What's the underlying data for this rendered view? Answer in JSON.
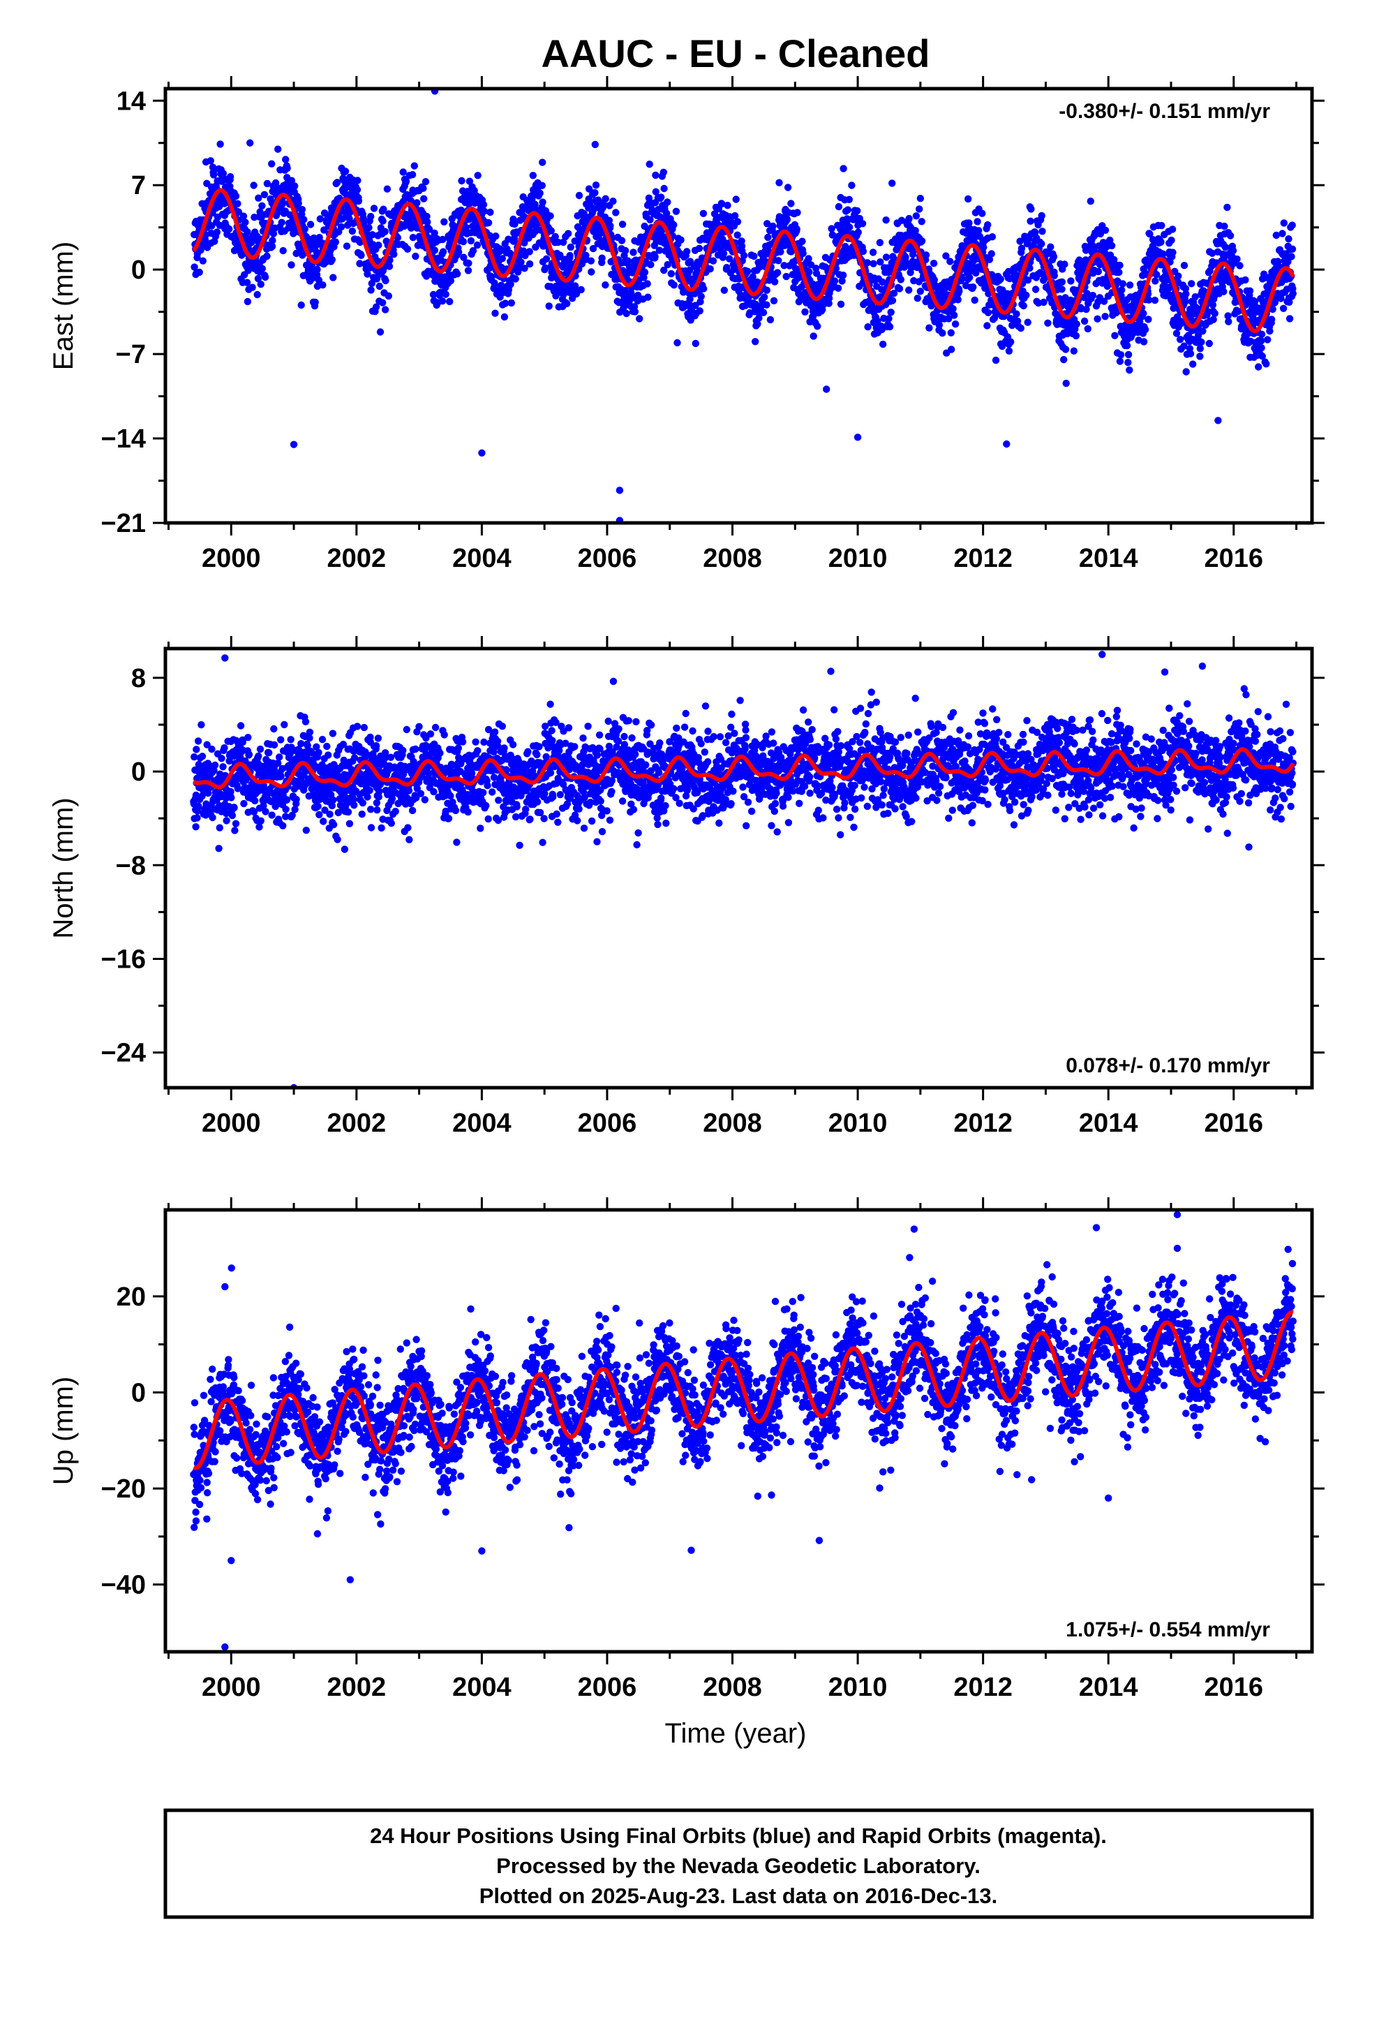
{
  "page_title": "AAUC  - EU - Cleaned",
  "xlabel": "Time (year)",
  "footer": {
    "line1": "24 Hour Positions Using Final Orbits (blue) and Rapid Orbits (magenta).",
    "line2": "Processed by the Nevada Geodetic Laboratory.",
    "line3": "Plotted on 2025-Aug-23. Last data on 2016-Dec-13."
  },
  "chart_data": [
    {
      "type": "scatter",
      "ylabel": "East (mm)",
      "rate_label": "-0.380+/- 0.151 mm/yr",
      "rate_position": "top-right",
      "xlim": [
        1998.95,
        2017.25
      ],
      "ylim": [
        -21,
        15
      ],
      "xticks": [
        2000,
        2002,
        2004,
        2006,
        2008,
        2010,
        2012,
        2014,
        2016
      ],
      "yticks": [
        14,
        7,
        0,
        -7,
        -14,
        -21
      ],
      "ytick_labels": [
        "14",
        "7",
        "0",
        "−7",
        "−14",
        "−21"
      ],
      "x_range": [
        1999.4,
        2016.95
      ],
      "fit": {
        "offset": 0.7,
        "slope": -0.38,
        "t0": 2008.2,
        "amplitude": 2.7,
        "phase": 2.6
      },
      "noise": 1.6,
      "outliers": [
        {
          "x": 2003.25,
          "y": 14.8
        },
        {
          "x": 2001.0,
          "y": -14.5
        },
        {
          "x": 2004.0,
          "y": -15.2
        },
        {
          "x": 2006.2,
          "y": -18.3
        },
        {
          "x": 2006.2,
          "y": -20.8
        },
        {
          "x": 2010.0,
          "y": -13.9
        },
        {
          "x": 2000.3,
          "y": 10.5
        },
        {
          "x": 2011.0,
          "y": 5.9
        }
      ]
    },
    {
      "type": "scatter",
      "ylabel": "North (mm)",
      "rate_label": "0.078+/- 0.170 mm/yr",
      "rate_position": "bottom-right",
      "xlim": [
        1998.95,
        2017.25
      ],
      "ylim": [
        -27,
        10.5
      ],
      "xticks": [
        2000,
        2002,
        2004,
        2006,
        2008,
        2010,
        2012,
        2014,
        2016
      ],
      "yticks": [
        8,
        0,
        -8,
        -16,
        -24
      ],
      "ytick_labels": [
        "8",
        "0",
        "−8",
        "−16",
        "−24"
      ],
      "x_range": [
        1999.4,
        2016.95
      ],
      "fit": {
        "offset": 0.1,
        "slope": 0.078,
        "t0": 2008.2,
        "amplitude": 0.8,
        "phase": 0.5,
        "second_harmonic": 0.4
      },
      "noise": 1.7,
      "outliers": [
        {
          "x": 1999.9,
          "y": 9.7
        },
        {
          "x": 2001.0,
          "y": -27.0
        },
        {
          "x": 2013.9,
          "y": 10.0
        },
        {
          "x": 2015.5,
          "y": 9.0
        },
        {
          "x": 2014.9,
          "y": 8.5
        },
        {
          "x": 2006.1,
          "y": 7.7
        }
      ]
    },
    {
      "type": "scatter",
      "ylabel": "Up (mm)",
      "rate_label": "1.075+/- 0.554 mm/yr",
      "rate_position": "bottom-right",
      "xlim": [
        1998.95,
        2017.25
      ],
      "ylim": [
        -54,
        38
      ],
      "xticks": [
        2000,
        2002,
        2004,
        2006,
        2008,
        2010,
        2012,
        2014,
        2016
      ],
      "yticks": [
        20,
        0,
        -20,
        -40
      ],
      "ytick_labels": [
        "20",
        "0",
        "−20",
        "−40"
      ],
      "x_range": [
        1999.4,
        2016.95
      ],
      "fit": {
        "offset": 0.5,
        "slope": 1.075,
        "t0": 2008.2,
        "amplitude": 6.8,
        "phase": 2.0
      },
      "noise": 5.0,
      "outliers": [
        {
          "x": 1999.9,
          "y": 22
        },
        {
          "x": 1999.9,
          "y": -53
        },
        {
          "x": 2001.9,
          "y": -39
        },
        {
          "x": 2004.0,
          "y": -33
        },
        {
          "x": 2010.9,
          "y": 34
        },
        {
          "x": 2015.1,
          "y": 37
        },
        {
          "x": 2015.1,
          "y": 30
        },
        {
          "x": 2014.0,
          "y": -22
        },
        {
          "x": 2000.0,
          "y": -35
        }
      ]
    }
  ],
  "colors": {
    "points": "#0000ff",
    "fit": "#ff0000",
    "frame": "#000000"
  }
}
